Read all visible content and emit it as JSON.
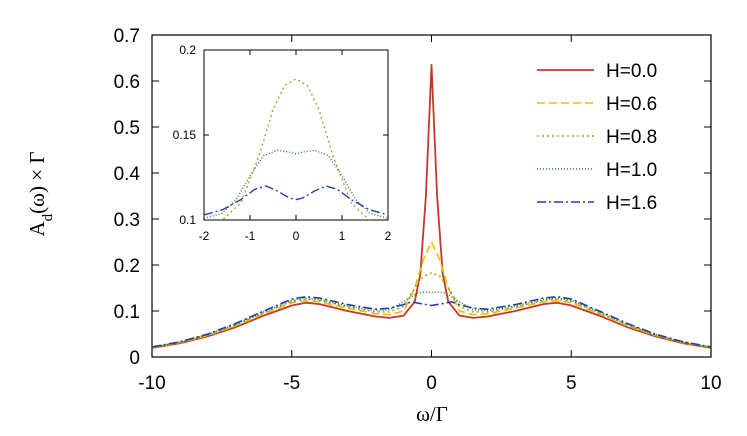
{
  "chart_data": {
    "type": "line",
    "xlabel": "ω/Γ",
    "ylabel": "A_d(ω) × Γ",
    "ylabel_parts": {
      "a": "A",
      "sub": "d",
      "rest": "(ω) × Γ"
    },
    "xlim": [
      -10,
      10
    ],
    "ylim": [
      0,
      0.7
    ],
    "xticks": [
      "-10",
      "-5",
      "0",
      "5",
      "10"
    ],
    "yticks": [
      "0",
      "0.1",
      "0.2",
      "0.3",
      "0.4",
      "0.5",
      "0.6",
      "0.7"
    ],
    "legend_position": "top-right",
    "series": [
      {
        "name": "H=0.0",
        "color": "#c0392b",
        "style": "solid",
        "points": [
          [
            -10,
            0.02
          ],
          [
            -9,
            0.03
          ],
          [
            -8,
            0.045
          ],
          [
            -7,
            0.065
          ],
          [
            -6,
            0.09
          ],
          [
            -5,
            0.112
          ],
          [
            -4.5,
            0.118
          ],
          [
            -4,
            0.115
          ],
          [
            -3,
            0.1
          ],
          [
            -2,
            0.088
          ],
          [
            -1.5,
            0.085
          ],
          [
            -1,
            0.09
          ],
          [
            -0.6,
            0.12
          ],
          [
            -0.4,
            0.18
          ],
          [
            -0.2,
            0.35
          ],
          [
            0,
            0.635
          ],
          [
            0.2,
            0.35
          ],
          [
            0.4,
            0.18
          ],
          [
            0.6,
            0.12
          ],
          [
            1,
            0.09
          ],
          [
            1.5,
            0.085
          ],
          [
            2,
            0.088
          ],
          [
            3,
            0.1
          ],
          [
            4,
            0.115
          ],
          [
            4.5,
            0.118
          ],
          [
            5,
            0.112
          ],
          [
            6,
            0.09
          ],
          [
            7,
            0.065
          ],
          [
            8,
            0.045
          ],
          [
            9,
            0.03
          ],
          [
            10,
            0.02
          ]
        ]
      },
      {
        "name": "H=0.6",
        "color": "#f5b800",
        "style": "dashed",
        "points": [
          [
            -10,
            0.021
          ],
          [
            -9,
            0.031
          ],
          [
            -8,
            0.047
          ],
          [
            -7,
            0.068
          ],
          [
            -6,
            0.094
          ],
          [
            -5,
            0.118
          ],
          [
            -4.5,
            0.123
          ],
          [
            -4,
            0.12
          ],
          [
            -3,
            0.106
          ],
          [
            -2,
            0.094
          ],
          [
            -1.5,
            0.092
          ],
          [
            -1,
            0.1
          ],
          [
            -0.6,
            0.15
          ],
          [
            -0.3,
            0.21
          ],
          [
            0,
            0.25
          ],
          [
            0.3,
            0.21
          ],
          [
            0.6,
            0.15
          ],
          [
            1,
            0.1
          ],
          [
            1.5,
            0.092
          ],
          [
            2,
            0.094
          ],
          [
            3,
            0.106
          ],
          [
            4,
            0.12
          ],
          [
            4.5,
            0.123
          ],
          [
            5,
            0.118
          ],
          [
            6,
            0.094
          ],
          [
            7,
            0.068
          ],
          [
            8,
            0.047
          ],
          [
            9,
            0.031
          ],
          [
            10,
            0.021
          ]
        ]
      },
      {
        "name": "H=0.8",
        "color": "#9aab2a",
        "style": "dotted",
        "points": [
          [
            -10,
            0.021
          ],
          [
            -9,
            0.032
          ],
          [
            -8,
            0.048
          ],
          [
            -7,
            0.07
          ],
          [
            -6,
            0.096
          ],
          [
            -5,
            0.121
          ],
          [
            -4.5,
            0.126
          ],
          [
            -4,
            0.123
          ],
          [
            -3,
            0.109
          ],
          [
            -2,
            0.098
          ],
          [
            -1.5,
            0.098
          ],
          [
            -1,
            0.11
          ],
          [
            -0.6,
            0.15
          ],
          [
            -0.3,
            0.175
          ],
          [
            0,
            0.183
          ],
          [
            0.3,
            0.175
          ],
          [
            0.6,
            0.15
          ],
          [
            1,
            0.11
          ],
          [
            1.5,
            0.098
          ],
          [
            2,
            0.098
          ],
          [
            3,
            0.109
          ],
          [
            4,
            0.123
          ],
          [
            4.5,
            0.126
          ],
          [
            5,
            0.121
          ],
          [
            6,
            0.096
          ],
          [
            7,
            0.07
          ],
          [
            8,
            0.048
          ],
          [
            9,
            0.032
          ],
          [
            10,
            0.021
          ]
        ]
      },
      {
        "name": "H=1.0",
        "color": "#2e7d32",
        "style": "finedot",
        "points": [
          [
            -10,
            0.021
          ],
          [
            -9,
            0.032
          ],
          [
            -8,
            0.049
          ],
          [
            -7,
            0.071
          ],
          [
            -6,
            0.098
          ],
          [
            -5,
            0.123
          ],
          [
            -4.5,
            0.128
          ],
          [
            -4,
            0.125
          ],
          [
            -3,
            0.111
          ],
          [
            -2,
            0.101
          ],
          [
            -1.5,
            0.103
          ],
          [
            -1,
            0.12
          ],
          [
            -0.5,
            0.139
          ],
          [
            -0.3,
            0.141
          ],
          [
            0,
            0.14
          ],
          [
            0.3,
            0.141
          ],
          [
            0.5,
            0.139
          ],
          [
            1,
            0.12
          ],
          [
            1.5,
            0.103
          ],
          [
            2,
            0.101
          ],
          [
            3,
            0.111
          ],
          [
            4,
            0.125
          ],
          [
            4.5,
            0.128
          ],
          [
            5,
            0.123
          ],
          [
            6,
            0.098
          ],
          [
            7,
            0.071
          ],
          [
            8,
            0.049
          ],
          [
            9,
            0.032
          ],
          [
            10,
            0.021
          ]
        ]
      },
      {
        "name": "H=1.6",
        "color": "#1f3fb0",
        "style": "dashdot",
        "points": [
          [
            -10,
            0.022
          ],
          [
            -9,
            0.033
          ],
          [
            -8,
            0.05
          ],
          [
            -7,
            0.073
          ],
          [
            -6,
            0.1
          ],
          [
            -5,
            0.126
          ],
          [
            -4.5,
            0.131
          ],
          [
            -4,
            0.128
          ],
          [
            -3,
            0.114
          ],
          [
            -2,
            0.104
          ],
          [
            -1.5,
            0.106
          ],
          [
            -1,
            0.114
          ],
          [
            -0.7,
            0.12
          ],
          [
            -0.4,
            0.116
          ],
          [
            0,
            0.112
          ],
          [
            0.4,
            0.116
          ],
          [
            0.7,
            0.12
          ],
          [
            1,
            0.114
          ],
          [
            1.5,
            0.106
          ],
          [
            2,
            0.104
          ],
          [
            3,
            0.114
          ],
          [
            4,
            0.128
          ],
          [
            4.5,
            0.131
          ],
          [
            5,
            0.126
          ],
          [
            6,
            0.1
          ],
          [
            7,
            0.073
          ],
          [
            8,
            0.05
          ],
          [
            9,
            0.033
          ],
          [
            10,
            0.022
          ]
        ]
      }
    ],
    "inset": {
      "xlim": [
        -2,
        2
      ],
      "ylim": [
        0.1,
        0.2
      ],
      "xticks": [
        "-2",
        "-1",
        "0",
        "1",
        "2"
      ],
      "yticks": [
        "0.1",
        "0.15",
        "0.2"
      ],
      "series": [
        {
          "name": "H=0.8",
          "color": "#9aab2a",
          "style": "dotted",
          "points": [
            [
              -2,
              0.098
            ],
            [
              -1.6,
              0.1
            ],
            [
              -1.2,
              0.11
            ],
            [
              -0.8,
              0.138
            ],
            [
              -0.5,
              0.165
            ],
            [
              -0.25,
              0.179
            ],
            [
              0,
              0.183
            ],
            [
              0.25,
              0.179
            ],
            [
              0.5,
              0.165
            ],
            [
              0.8,
              0.138
            ],
            [
              1.2,
              0.11
            ],
            [
              1.6,
              0.1
            ],
            [
              2,
              0.098
            ]
          ]
        },
        {
          "name": "H=1.0",
          "color": "#2e7d32",
          "style": "finedot",
          "points": [
            [
              -2,
              0.101
            ],
            [
              -1.6,
              0.104
            ],
            [
              -1.3,
              0.112
            ],
            [
              -1,
              0.126
            ],
            [
              -0.7,
              0.138
            ],
            [
              -0.4,
              0.141
            ],
            [
              -0.15,
              0.14
            ],
            [
              0,
              0.139
            ],
            [
              0.15,
              0.14
            ],
            [
              0.4,
              0.141
            ],
            [
              0.7,
              0.138
            ],
            [
              1,
              0.126
            ],
            [
              1.3,
              0.112
            ],
            [
              1.6,
              0.104
            ],
            [
              2,
              0.101
            ]
          ]
        },
        {
          "name": "H=1.6",
          "color": "#1f3fb0",
          "style": "dashdot",
          "points": [
            [
              -2,
              0.103
            ],
            [
              -1.6,
              0.106
            ],
            [
              -1.2,
              0.112
            ],
            [
              -0.9,
              0.118
            ],
            [
              -0.65,
              0.12
            ],
            [
              -0.4,
              0.117
            ],
            [
              -0.15,
              0.113
            ],
            [
              0,
              0.112
            ],
            [
              0.15,
              0.113
            ],
            [
              0.4,
              0.117
            ],
            [
              0.65,
              0.12
            ],
            [
              0.9,
              0.118
            ],
            [
              1.2,
              0.112
            ],
            [
              1.6,
              0.106
            ],
            [
              2,
              0.103
            ]
          ]
        }
      ]
    }
  }
}
